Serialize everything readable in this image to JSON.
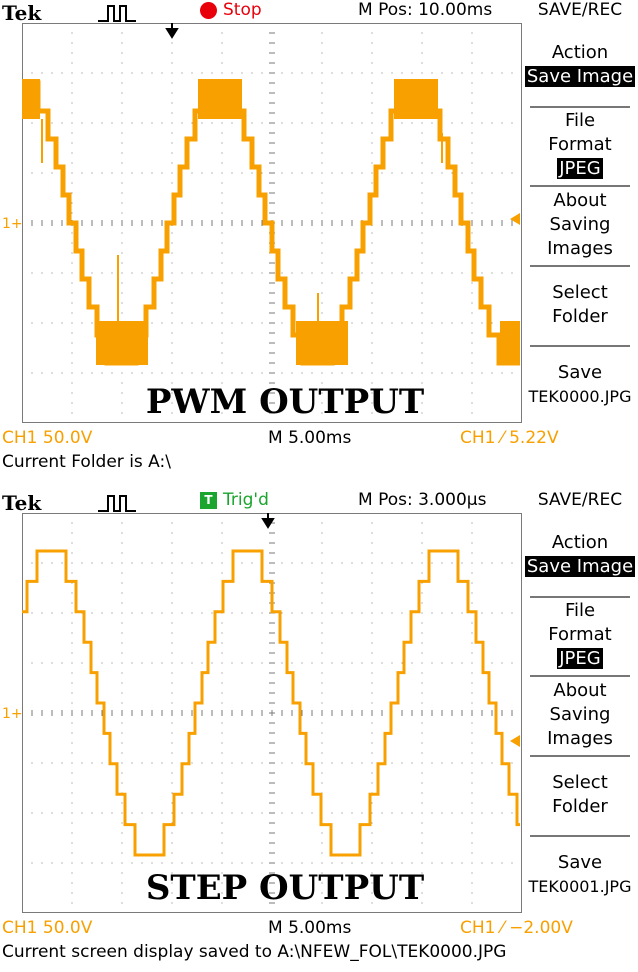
{
  "panels": [
    {
      "brand": "Tek",
      "acq_status": "Stop",
      "m_pos": "M Pos: 10.00ms",
      "menu_header": "SAVE/REC",
      "menu": {
        "action_title": "Action",
        "action_value": "Save Image",
        "file_format_line1": "File",
        "file_format_line2": "Format",
        "file_format_value": "JPEG",
        "about_line1": "About",
        "about_line2": "Saving",
        "about_line3": "Images",
        "select_line1": "Select",
        "select_line2": "Folder",
        "save_line1": "Save",
        "save_line2": "TEK0000.JPG"
      },
      "overlay_title": "PWM OUTPUT",
      "ch1_scale": "CH1  50.0V",
      "time_scale": "M 5.00ms",
      "trigger_readout": "CH1 ⁄ 5.22V",
      "status_line": "Current Folder is A:\\",
      "ch1_marker": "1+",
      "colors": {
        "trace": "#f7a000",
        "grid": "#7a7a7a",
        "stop": "#e8000b"
      }
    },
    {
      "brand": "Tek",
      "acq_status": "Trig'd",
      "acq_badge": "T",
      "m_pos": "M Pos: 3.000µs",
      "menu_header": "SAVE/REC",
      "menu": {
        "action_title": "Action",
        "action_value": "Save Image",
        "file_format_line1": "File",
        "file_format_line2": "Format",
        "file_format_value": "JPEG",
        "about_line1": "About",
        "about_line2": "Saving",
        "about_line3": "Images",
        "select_line1": "Select",
        "select_line2": "Folder",
        "save_line1": "Save",
        "save_line2": "TEK0001.JPG"
      },
      "overlay_title": "STEP OUTPUT",
      "ch1_scale": "CH1  50.0V",
      "time_scale": "M 5.00ms",
      "trigger_readout": "CH1 ⁄ −2.00V",
      "status_line": "Current screen display saved to A:\\NFEW_FOL\\TEK0000.JPG",
      "ch1_marker": "1+",
      "colors": {
        "trace": "#f7a000",
        "grid": "#7a7a7a",
        "trigd": "#1aa52e"
      }
    }
  ]
}
